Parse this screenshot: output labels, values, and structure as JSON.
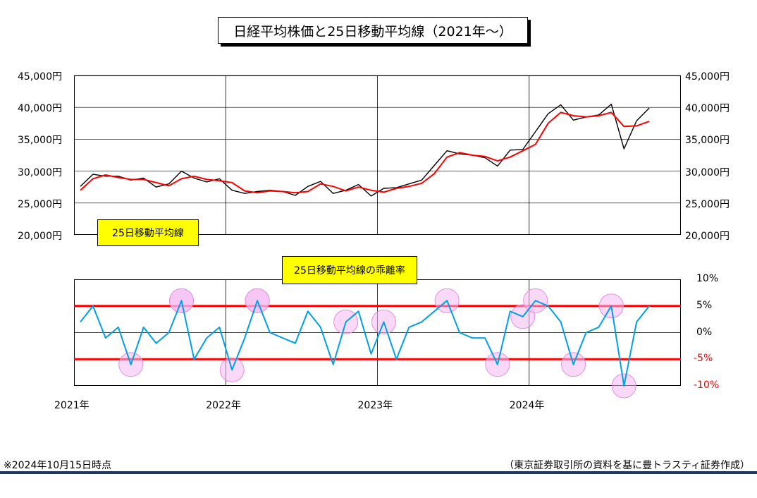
{
  "title": "日経平均株価と25日移動平均線（2021年～）",
  "footer_note": "※2024年10月15日時点",
  "source": "（東京証券取引所の資料を基に豊トラスティ証券作成）",
  "colors": {
    "price": "#000000",
    "ma": "#ff0000",
    "deviation": "#00a0e9",
    "band": "#ff0000",
    "highlight": "#f4b8f2",
    "rule": "#1f3864"
  },
  "chart_data": [
    {
      "type": "line",
      "label_box": "25日移動平均線",
      "x_ticks": [
        "2021年",
        "2022年",
        "2023年",
        "2024年"
      ],
      "y_ticks_left": [
        "45,000円",
        "40,000円",
        "35,000円",
        "30,000円",
        "25,000円",
        "20,000円"
      ],
      "y_ticks_right": [
        "45,000円",
        "40,000円",
        "35,000円",
        "30,000円",
        "25,000円",
        "20,000円"
      ],
      "ylim": [
        20000,
        45000
      ],
      "x_range": [
        "2021-01",
        "2024-12"
      ],
      "series": [
        {
          "name": "日経平均株価",
          "x": [
            "2021-01",
            "2021-02",
            "2021-03",
            "2021-04",
            "2021-05",
            "2021-06",
            "2021-07",
            "2021-08",
            "2021-09",
            "2021-10",
            "2021-11",
            "2021-12",
            "2022-01",
            "2022-02",
            "2022-03",
            "2022-04",
            "2022-05",
            "2022-06",
            "2022-07",
            "2022-08",
            "2022-09",
            "2022-10",
            "2022-11",
            "2022-12",
            "2023-01",
            "2023-02",
            "2023-03",
            "2023-04",
            "2023-05",
            "2023-06",
            "2023-07",
            "2023-08",
            "2023-09",
            "2023-10",
            "2023-11",
            "2023-12",
            "2024-01",
            "2024-02",
            "2024-03",
            "2024-04",
            "2024-05",
            "2024-06",
            "2024-07",
            "2024-08",
            "2024-09",
            "2024-10"
          ],
          "values": [
            27600,
            29500,
            29200,
            29200,
            28600,
            28900,
            27500,
            28000,
            30000,
            28900,
            28300,
            28800,
            27000,
            26500,
            26800,
            27000,
            26800,
            26200,
            27600,
            28400,
            26500,
            27000,
            27900,
            26100,
            27300,
            27400,
            28000,
            28600,
            30900,
            33200,
            32700,
            32500,
            32100,
            30800,
            33300,
            33400,
            36200,
            39000,
            40400,
            38000,
            38500,
            38800,
            40500,
            33500,
            37900,
            39900
          ]
        },
        {
          "name": "25日移動平均線",
          "x": [
            "2021-01",
            "2021-02",
            "2021-03",
            "2021-04",
            "2021-05",
            "2021-06",
            "2021-07",
            "2021-08",
            "2021-09",
            "2021-10",
            "2021-11",
            "2021-12",
            "2022-01",
            "2022-02",
            "2022-03",
            "2022-04",
            "2022-05",
            "2022-06",
            "2022-07",
            "2022-08",
            "2022-09",
            "2022-10",
            "2022-11",
            "2022-12",
            "2023-01",
            "2023-02",
            "2023-03",
            "2023-04",
            "2023-05",
            "2023-06",
            "2023-07",
            "2023-08",
            "2023-09",
            "2023-10",
            "2023-11",
            "2023-12",
            "2024-01",
            "2024-02",
            "2024-03",
            "2024-04",
            "2024-05",
            "2024-06",
            "2024-07",
            "2024-08",
            "2024-09",
            "2024-10"
          ],
          "values": [
            27000,
            28800,
            29400,
            29000,
            28700,
            28700,
            28200,
            27700,
            28800,
            29200,
            28700,
            28500,
            28200,
            26900,
            26600,
            26900,
            26800,
            26600,
            26800,
            28000,
            27600,
            26900,
            27500,
            27000,
            26700,
            27300,
            27600,
            28100,
            29600,
            32200,
            32900,
            32500,
            32300,
            31600,
            32200,
            33200,
            34200,
            37500,
            39200,
            38700,
            38500,
            38700,
            39200,
            37000,
            37100,
            37800
          ]
        }
      ]
    },
    {
      "type": "line",
      "label_box": "25日移動平均線の乖離率",
      "x_ticks": [
        "2021年",
        "2022年",
        "2023年",
        "2024年"
      ],
      "y_ticks": [
        "10%",
        "5%",
        "0%",
        "-5%",
        "-10%"
      ],
      "ylim": [
        -10,
        10
      ],
      "bands": [
        5,
        -5
      ],
      "series": [
        {
          "name": "乖離率",
          "x": [
            "2021-01",
            "2021-02",
            "2021-03",
            "2021-04",
            "2021-05",
            "2021-06",
            "2021-07",
            "2021-08",
            "2021-09",
            "2021-10",
            "2021-11",
            "2021-12",
            "2022-01",
            "2022-02",
            "2022-03",
            "2022-04",
            "2022-05",
            "2022-06",
            "2022-07",
            "2022-08",
            "2022-09",
            "2022-10",
            "2022-11",
            "2022-12",
            "2023-01",
            "2023-02",
            "2023-03",
            "2023-04",
            "2023-05",
            "2023-06",
            "2023-07",
            "2023-08",
            "2023-09",
            "2023-10",
            "2023-11",
            "2023-12",
            "2024-01",
            "2024-02",
            "2024-03",
            "2024-04",
            "2024-05",
            "2024-06",
            "2024-07",
            "2024-08",
            "2024-09",
            "2024-10"
          ],
          "values": [
            2,
            5,
            -1,
            1,
            -6,
            1,
            -2,
            0,
            6,
            -5,
            -1,
            1,
            -7,
            -1,
            6,
            0,
            -1,
            -2,
            4,
            1,
            -6,
            2,
            4,
            -4,
            2,
            -5,
            1,
            2,
            4,
            6,
            0,
            -1,
            -1,
            -6,
            4,
            3,
            6,
            5,
            2,
            -6,
            0,
            1,
            5,
            -10,
            2,
            5
          ]
        }
      ],
      "highlights": [
        "2021-09",
        "2022-03",
        "2023-06",
        "2023-12",
        "2024-01",
        "2024-07",
        "2021-05",
        "2021-09",
        "2022-01",
        "2022-03",
        "2022-10",
        "2023-01",
        "2023-10",
        "2024-04",
        "2024-08"
      ]
    }
  ]
}
